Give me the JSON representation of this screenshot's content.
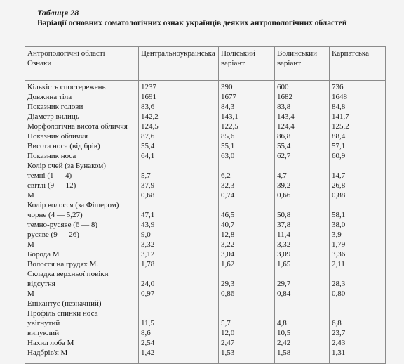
{
  "caption": {
    "number": "Таблиця 28",
    "title": "Варіації основних соматологічних ознак українців деяких антропологічних областей"
  },
  "table": {
    "header": {
      "feature_col_line1": "Антропологічні області",
      "feature_col_line2": "Ознаки",
      "columns": [
        {
          "line1": "Центральноукраїнська",
          "line2": ""
        },
        {
          "line1": "Поліський",
          "line2": "варіант"
        },
        {
          "line1": "Волинський",
          "line2": "варіант"
        },
        {
          "line1": "Карпатська",
          "line2": ""
        }
      ]
    },
    "rows": [
      {
        "label": "Кількість спостережень",
        "values": [
          "1237",
          "390",
          "600",
          "736"
        ]
      },
      {
        "label": "Довжина тіла",
        "values": [
          "1691",
          "1677",
          "1682",
          "1648"
        ]
      },
      {
        "label": "Показник голови",
        "values": [
          "83,6",
          "84,3",
          "83,8",
          "84,8"
        ]
      },
      {
        "label": "Діаметр вилиць",
        "values": [
          "142,2",
          "143,1",
          "143,4",
          "141,7"
        ]
      },
      {
        "label": "Морфологічна висота обличчя",
        "values": [
          "124,5",
          "122,5",
          "124,4",
          "125,2"
        ]
      },
      {
        "label": "Показник обличчя",
        "values": [
          "87,6",
          "85,6",
          "86,8",
          "88,4"
        ]
      },
      {
        "label": "Висота носа (від брів)",
        "values": [
          "55,4",
          "55,1",
          "55,4",
          "57,1"
        ]
      },
      {
        "label": "Показник носа",
        "values": [
          "64,1",
          "63,0",
          "62,7",
          "60,9"
        ]
      },
      {
        "label": "Колір очей (за Бунаком)",
        "values": [
          "",
          "",
          "",
          ""
        ]
      },
      {
        "label": "темні (1 — 4)",
        "values": [
          "5,7",
          "6,2",
          "4,7",
          "14,7"
        ]
      },
      {
        "label": "світлі (9 — 12)",
        "values": [
          "37,9",
          "32,3",
          "39,2",
          "26,8"
        ]
      },
      {
        "label": "М",
        "values": [
          "0,68",
          "0,74",
          "0,66",
          "0,88"
        ]
      },
      {
        "label": "Колір волосся (за Фішером)",
        "values": [
          "",
          "",
          "",
          ""
        ]
      },
      {
        "label": "чорне (4 — 5,27)",
        "values": [
          "47,1",
          "46,5",
          "50,8",
          "58,1"
        ]
      },
      {
        "label": "темно-русяве (6 — 8)",
        "values": [
          "43,9",
          "40,7",
          "37,8",
          "38,0"
        ]
      },
      {
        "label": "русяве (9 — 26)",
        "values": [
          "9,0",
          "12,8",
          "11,4",
          "3,9"
        ]
      },
      {
        "label": "М",
        "values": [
          "3,32",
          "3,22",
          "3,32",
          "1,79"
        ]
      },
      {
        "label": "Борода М",
        "values": [
          "3,12",
          "3,04",
          "3,09",
          "3,36"
        ]
      },
      {
        "label": "Волосся на грудях М.",
        "values": [
          "1,78",
          "1,62",
          "1,65",
          "2,11"
        ]
      },
      {
        "label": "Складка верхньої повіки",
        "values": [
          "",
          "",
          "",
          ""
        ]
      },
      {
        "label": "відсутня",
        "values": [
          "24,0",
          "29,3",
          "29,7",
          "28,3"
        ]
      },
      {
        "label": "М",
        "values": [
          "0,97",
          "0,86",
          "0,84",
          "0,80"
        ]
      },
      {
        "label": "Епікантус (незначний)",
        "values": [
          "—",
          "—",
          "—",
          "—"
        ]
      },
      {
        "label": "Профіль спинки носа",
        "values": [
          "",
          "",
          "",
          ""
        ]
      },
      {
        "label": "увігнутий",
        "values": [
          "11,5",
          "5,7",
          "4,8",
          "6,8"
        ]
      },
      {
        "label": "випуклий",
        "values": [
          "8,6",
          "12,0",
          "10,5",
          "23,7"
        ]
      },
      {
        "label": "Нахил лоба М",
        "values": [
          "2,54",
          "2,47",
          "2,42",
          "2,43"
        ]
      },
      {
        "label": "Надбрів'я М",
        "values": [
          "1,42",
          "1,53",
          "1,58",
          "1,31"
        ]
      }
    ]
  }
}
